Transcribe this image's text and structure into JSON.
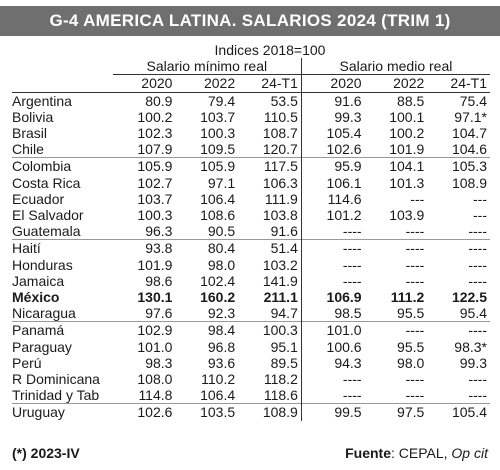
{
  "title": "G-4   AMERICA LATINA. SALARIOS 2024 (TRIM 1)",
  "index_note": "Indices 2018=100",
  "groups": {
    "left": "Salario mínimo real",
    "right": "Salario medio real"
  },
  "years": [
    "2020",
    "2022",
    "24-T1",
    "2020",
    "2022",
    "24-T1"
  ],
  "rows": [
    {
      "country": "Argentina",
      "v": [
        "80.9",
        "79.4",
        "53.5",
        "91.6",
        "88.5",
        "75.4"
      ]
    },
    {
      "country": "Bolivia",
      "v": [
        "100.2",
        "103.7",
        "110.5",
        "99.3",
        "100.1",
        "97.1*"
      ]
    },
    {
      "country": "Brasil",
      "v": [
        "102.3",
        "100.3",
        "108.7",
        "105.4",
        "100.2",
        "104.7"
      ]
    },
    {
      "country": "Chile",
      "v": [
        "107.9",
        "109.5",
        "120.7",
        "102.6",
        "101.9",
        "104.6"
      ]
    },
    {
      "country": "Colombia",
      "v": [
        "105.9",
        "105.9",
        "117.5",
        "95.9",
        "104.1",
        "105.3"
      ]
    },
    {
      "country": "Costa Rica",
      "v": [
        "102.7",
        "97.1",
        "106.3",
        "106.1",
        "101.3",
        "108.9"
      ]
    },
    {
      "country": "Ecuador",
      "v": [
        "103.7",
        "106.4",
        "111.9",
        "114.6",
        "---",
        "---"
      ]
    },
    {
      "country": "El Salvador",
      "v": [
        "100.3",
        "108.6",
        "103.8",
        "101.2",
        "103.9",
        "---"
      ]
    },
    {
      "country": "Guatemala",
      "v": [
        "96.3",
        "90.5",
        "91.6",
        "----",
        "----",
        "----"
      ]
    },
    {
      "country": "Haití",
      "v": [
        "93.8",
        "80.4",
        "51.4",
        "----",
        "----",
        "----"
      ]
    },
    {
      "country": "Honduras",
      "v": [
        "101.9",
        "98.0",
        "103.2",
        "----",
        "----",
        "----"
      ]
    },
    {
      "country": "Jamaica",
      "v": [
        "98.6",
        "102.4",
        "141.9",
        "----",
        "----",
        "----"
      ]
    },
    {
      "country": "México",
      "v": [
        "130.1",
        "160.2",
        "211.1",
        "106.9",
        "111.2",
        "122.5"
      ],
      "bold": true
    },
    {
      "country": "Nicaragua",
      "v": [
        "97.6",
        "92.3",
        "94.7",
        "98.5",
        "95.5",
        "95.4"
      ]
    },
    {
      "country": "Panamá",
      "v": [
        "102.9",
        "98.4",
        "100.3",
        "101.0",
        "----",
        "----"
      ]
    },
    {
      "country": "Paraguay",
      "v": [
        "101.0",
        "96.8",
        "95.1",
        "100.6",
        "95.5",
        "98.3*"
      ]
    },
    {
      "country": "Perú",
      "v": [
        "98.3",
        "93.6",
        "89.5",
        "94.3",
        "98.0",
        "99.3"
      ]
    },
    {
      "country": "R Dominicana",
      "v": [
        "108.0",
        "110.2",
        "118.2",
        "----",
        "----",
        "----"
      ]
    },
    {
      "country": "Trinidad y Tab",
      "v": [
        "114.8",
        "106.4",
        "118.6",
        "----",
        "----",
        "----"
      ]
    },
    {
      "country": "Uruguay",
      "v": [
        "102.6",
        "103.5",
        "108.9",
        "99.5",
        "97.5",
        "105.4"
      ]
    }
  ],
  "group_breaks_after": [
    3,
    8,
    13,
    18
  ],
  "footer": {
    "note": "(*) 2023-IV",
    "source_label": "Fuente",
    "source_text": ": CEPAL, ",
    "source_italic": "Op cit"
  }
}
